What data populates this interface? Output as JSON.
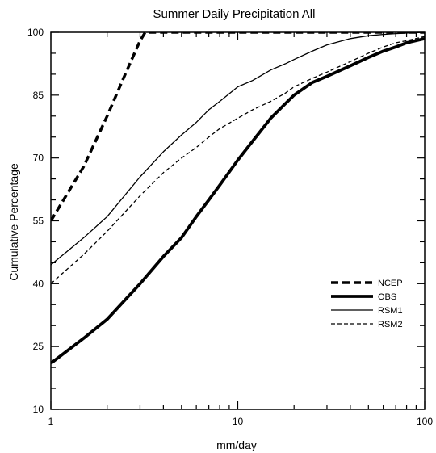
{
  "chart_data": {
    "type": "line",
    "title": "Summer Daily Precipitation All",
    "xlabel": "mm/day",
    "ylabel": "Cumulative Percentage",
    "xscale": "log",
    "xlim": [
      1,
      100
    ],
    "ylim": [
      10,
      100
    ],
    "xticks": [
      1,
      10,
      100
    ],
    "xtick_labels": [
      "1",
      "10",
      "100"
    ],
    "yticks": [
      10,
      25,
      40,
      55,
      70,
      85,
      100
    ],
    "ytick_labels": [
      "10",
      "25",
      "40",
      "55",
      "70",
      "85",
      "100"
    ],
    "grid": false,
    "legend_position": "lower-right",
    "series": [
      {
        "name": "NCEP",
        "style": "thick-dashed",
        "x": [
          1,
          1.5,
          2,
          2.5,
          3,
          3.2,
          100
        ],
        "y": [
          55,
          68,
          80,
          90,
          98,
          100,
          100
        ]
      },
      {
        "name": "OBS",
        "style": "thick-solid",
        "x": [
          1,
          1.5,
          2,
          3,
          4,
          5,
          6,
          7,
          8,
          10,
          12,
          15,
          18,
          20,
          25,
          30,
          40,
          50,
          60,
          70,
          80,
          100
        ],
        "y": [
          21,
          27,
          31.5,
          40,
          46.5,
          51,
          56,
          60,
          63.5,
          69.5,
          74,
          79.5,
          83,
          85,
          88,
          89.5,
          92,
          94,
          95.5,
          96.5,
          97.5,
          98.5
        ]
      },
      {
        "name": "RSM1",
        "style": "thin-solid",
        "x": [
          1,
          1.5,
          2,
          3,
          4,
          5,
          6,
          7,
          8,
          10,
          12,
          15,
          18,
          20,
          25,
          30,
          40,
          50,
          60,
          70,
          80,
          100
        ],
        "y": [
          44.5,
          51,
          56,
          65.5,
          71.5,
          75.5,
          78.5,
          81.5,
          83.5,
          87,
          88.5,
          91,
          92.5,
          93.5,
          95.5,
          97,
          98.5,
          99.2,
          99.5,
          99.7,
          99.8,
          100
        ]
      },
      {
        "name": "RSM2",
        "style": "thin-dashed",
        "x": [
          1,
          1.5,
          2,
          3,
          4,
          5,
          6,
          7,
          8,
          10,
          12,
          15,
          18,
          20,
          25,
          30,
          40,
          50,
          60,
          70,
          80,
          100
        ],
        "y": [
          40,
          47,
          52.5,
          61,
          66.5,
          70,
          72.5,
          75,
          77,
          79.5,
          81.5,
          83.5,
          85.5,
          87,
          89,
          90.5,
          93,
          95,
          96.5,
          97.5,
          98,
          99
        ]
      }
    ]
  }
}
